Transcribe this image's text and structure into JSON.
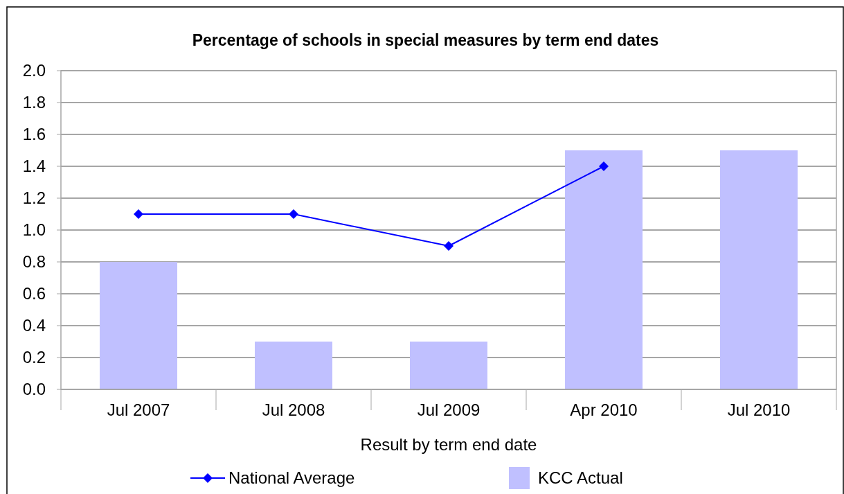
{
  "chart_data": {
    "type": "bar",
    "title": "Percentage of schools in special measures by term end dates",
    "xlabel": "Result by term end date",
    "categories": [
      "Jul 2007",
      "Jul 2008",
      "Jul 2009",
      "Apr 2010",
      "Jul 2010"
    ],
    "series": [
      {
        "name": "National Average",
        "type": "line",
        "color": "#0000ff",
        "values": [
          1.1,
          1.1,
          0.9,
          1.4,
          null
        ],
        "marker": "diamond"
      },
      {
        "name": "KCC Actual",
        "color": "#c0c0ff",
        "values": [
          0.8,
          0.3,
          0.3,
          1.5,
          1.5
        ]
      }
    ],
    "ylim": [
      0,
      2
    ],
    "yticks": [
      {
        "value": 0,
        "label": "0.0"
      },
      {
        "value": 0.2,
        "label": "0.2"
      },
      {
        "value": 0.4,
        "label": "0.4"
      },
      {
        "value": 0.6,
        "label": "0.6"
      },
      {
        "value": 0.8,
        "label": "0.8"
      },
      {
        "value": 1,
        "label": "1.0"
      },
      {
        "value": 1.2,
        "label": "1.2"
      },
      {
        "value": 1.4,
        "label": "1.4"
      },
      {
        "value": 1.6,
        "label": "1.6"
      },
      {
        "value": 1.8,
        "label": "1.8"
      },
      {
        "value": 2,
        "label": "2.0"
      }
    ],
    "grid": "y",
    "legend": "bottom"
  }
}
